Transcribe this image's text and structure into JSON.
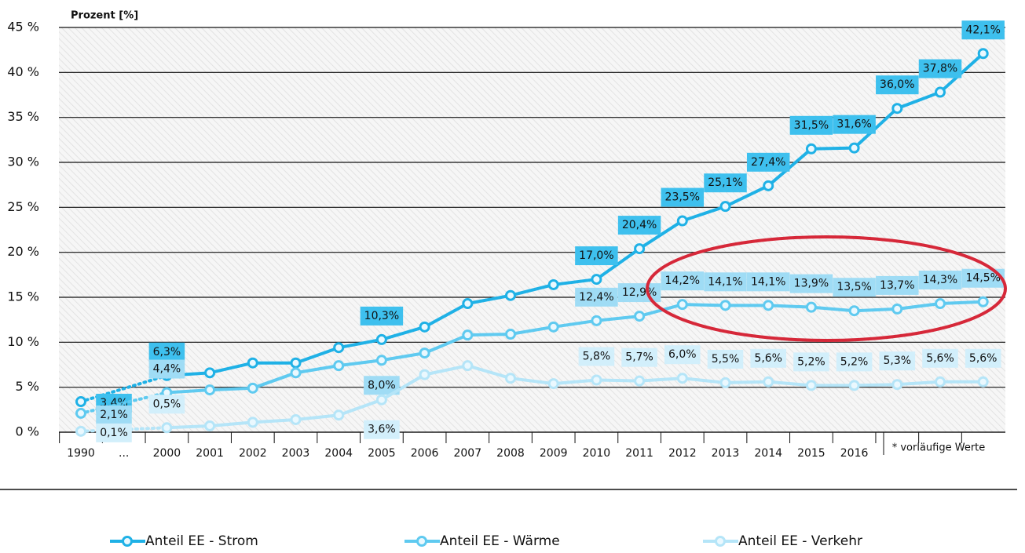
{
  "chart_data": {
    "type": "line",
    "y_axis_label": "Prozent [%]",
    "footnote": "* vorläufige Werte",
    "categories": [
      "1990",
      "...",
      "2000",
      "2001",
      "2002",
      "2003",
      "2004",
      "2005",
      "2006",
      "2007",
      "2008",
      "2009",
      "2010",
      "2011",
      "2012",
      "2013",
      "2014",
      "2015",
      "2016",
      null,
      null,
      null
    ],
    "ylim": [
      0,
      45
    ],
    "yticks": [
      {
        "value": 0,
        "label": "0 %"
      },
      {
        "value": 5,
        "label": "5 %"
      },
      {
        "value": 10,
        "label": "10 %"
      },
      {
        "value": 15,
        "label": "15 %"
      },
      {
        "value": 20,
        "label": "20 %"
      },
      {
        "value": 25,
        "label": "25 %"
      },
      {
        "value": 30,
        "label": "30 %"
      },
      {
        "value": 35,
        "label": "35 %"
      },
      {
        "value": 40,
        "label": "40 %"
      },
      {
        "value": 45,
        "label": "45 %"
      }
    ],
    "grid": true,
    "legend": "bottom",
    "series": [
      {
        "name": "Anteil EE - Strom",
        "color": "#1fb1e6",
        "label_color": "#3ec0ee",
        "values": [
          3.4,
          null,
          6.3,
          6.6,
          7.7,
          7.7,
          9.4,
          10.3,
          11.7,
          14.3,
          15.2,
          16.4,
          17.0,
          20.4,
          23.5,
          25.1,
          27.4,
          31.5,
          31.6,
          36.0,
          37.8,
          42.1
        ],
        "value_labels": [
          "3,4%",
          null,
          "6,3%",
          null,
          null,
          null,
          null,
          "10,3%",
          null,
          null,
          null,
          null,
          "17,0%",
          "20,4%",
          "23,5%",
          "25,1%",
          "27,4%",
          "31,5%",
          "31,6%",
          "36,0%",
          "37,8%",
          "42,1%"
        ]
      },
      {
        "name": "Anteil EE - Wärme",
        "color": "#5fcaf0",
        "label_color": "#9fdcf5",
        "values": [
          2.1,
          null,
          4.4,
          4.7,
          4.9,
          6.6,
          7.4,
          8.0,
          8.8,
          10.8,
          10.9,
          11.7,
          12.4,
          12.9,
          14.2,
          14.1,
          14.1,
          13.9,
          13.5,
          13.7,
          14.3,
          14.5
        ],
        "value_labels": [
          "2,1%",
          null,
          "4,4%",
          null,
          null,
          null,
          null,
          "8,0%",
          null,
          null,
          null,
          null,
          "12,4%",
          "12,9%",
          "14,2%",
          "14,1%",
          "14,1%",
          "13,9%",
          "13,5%",
          "13,7%",
          "14,3%",
          "14,5%"
        ]
      },
      {
        "name": "Anteil EE - Verkehr",
        "color": "#b5e5f8",
        "label_color": "#d2effb",
        "values": [
          0.1,
          null,
          0.5,
          0.7,
          1.1,
          1.4,
          1.9,
          3.6,
          6.4,
          7.4,
          6.0,
          5.4,
          5.8,
          5.7,
          6.0,
          5.5,
          5.6,
          5.2,
          5.2,
          5.3,
          5.6,
          5.6
        ],
        "value_labels": [
          "0,1%",
          null,
          "0,5%",
          null,
          null,
          null,
          null,
          "3,6%",
          null,
          null,
          null,
          null,
          "5,8%",
          "5,7%",
          "6,0%",
          "5,5%",
          "5,6%",
          "5,2%",
          "5,2%",
          "5,3%",
          "5,6%",
          "5,6%"
        ]
      }
    ]
  }
}
